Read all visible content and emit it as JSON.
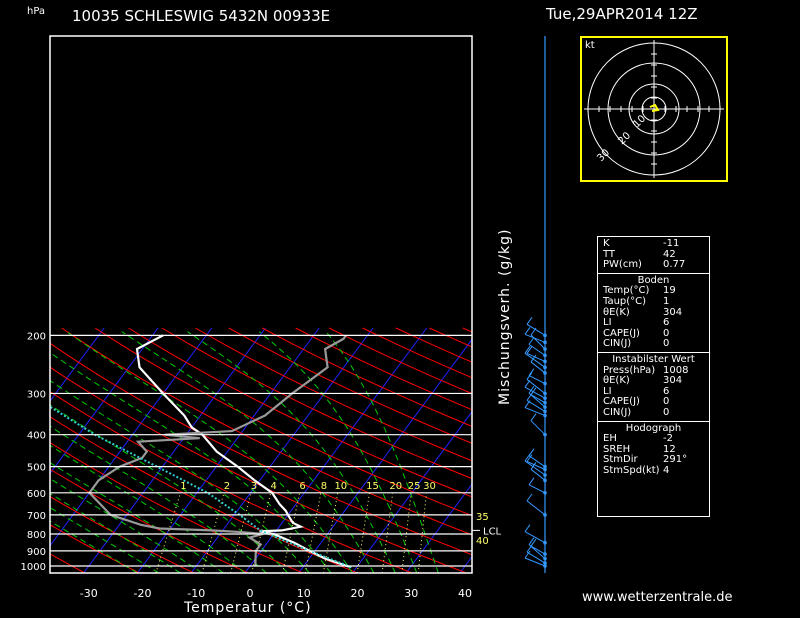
{
  "header": {
    "station": "10035 SCHLESWIG 5432N 00933E",
    "datetime": "Tue,29APR2014 12Z",
    "pressure_unit": "hPa"
  },
  "footer": {
    "website": "www.wetterzentrale.de"
  },
  "colors": {
    "background": "#000000",
    "isotherm": "#2222ff",
    "dry_adiabat": "#ff0000",
    "moist_adiabat": "#00cc00",
    "mixing_ratio": "#ffff66",
    "parcel": "#33cccc",
    "hodograph_frame": "#ffff00",
    "wind_barbs": "#3399ff"
  },
  "chart_data": {
    "type": "line",
    "subtype": "skew-T log-P diagram",
    "xlabel": "Temperatur (°C)",
    "ylabel": "Mischungsverh. (g/kg)",
    "x_ticks": [
      -30,
      -20,
      -10,
      0,
      10,
      20,
      30,
      40
    ],
    "pressure_levels": [
      200,
      300,
      400,
      500,
      600,
      700,
      800,
      900,
      1000
    ],
    "xlim": [
      -40,
      40
    ],
    "ylim": [
      1000,
      200
    ],
    "mixing_ratio_labels": [
      "1",
      "2",
      "3",
      "4",
      "6",
      "8",
      "10",
      "15",
      "20",
      "25",
      "30"
    ],
    "theta_e_labels": [
      "35",
      "40"
    ],
    "lcl_label": "LCL",
    "lcl_pressure": 780,
    "series": [
      {
        "name": "Temp",
        "color": "#ffffff",
        "points": [
          [
            1008,
            19
          ],
          [
            1000,
            18
          ],
          [
            950,
            13
          ],
          [
            900,
            9
          ],
          [
            850,
            5
          ],
          [
            800,
            0
          ],
          [
            785,
            -3
          ],
          [
            780,
            1
          ],
          [
            760,
            4
          ],
          [
            740,
            2
          ],
          [
            700,
            0
          ],
          [
            680,
            -1
          ],
          [
            650,
            -3
          ],
          [
            600,
            -6
          ],
          [
            550,
            -11
          ],
          [
            500,
            -16
          ],
          [
            450,
            -22
          ],
          [
            400,
            -27
          ],
          [
            380,
            -30
          ],
          [
            350,
            -33
          ],
          [
            300,
            -40
          ],
          [
            250,
            -48
          ],
          [
            220,
            -51
          ],
          [
            200,
            -48
          ]
        ]
      },
      {
        "name": "Taupunkt",
        "color": "#999999",
        "points": [
          [
            1000,
            1
          ],
          [
            950,
            0
          ],
          [
            900,
            -1
          ],
          [
            860,
            -1
          ],
          [
            820,
            -4
          ],
          [
            800,
            -2
          ],
          [
            790,
            -6
          ],
          [
            780,
            -12
          ],
          [
            770,
            -22
          ],
          [
            750,
            -26
          ],
          [
            700,
            -33
          ],
          [
            600,
            -40
          ],
          [
            550,
            -40
          ],
          [
            500,
            -38
          ],
          [
            470,
            -35
          ],
          [
            450,
            -35
          ],
          [
            420,
            -38
          ],
          [
            410,
            -27
          ],
          [
            400,
            -34
          ],
          [
            390,
            -22
          ],
          [
            350,
            -18
          ],
          [
            300,
            -16
          ],
          [
            250,
            -13
          ],
          [
            220,
            -16
          ],
          [
            205,
            -14
          ],
          [
            200,
            -14
          ]
        ]
      },
      {
        "name": "Parcel",
        "color": "#33cccc",
        "points": [
          [
            1008,
            19
          ],
          [
            900,
            9
          ],
          [
            800,
            -1
          ],
          [
            780,
            -3
          ],
          [
            700,
            -9
          ],
          [
            600,
            -18
          ],
          [
            500,
            -31
          ],
          [
            400,
            -47
          ],
          [
            300,
            -65
          ],
          [
            200,
            -89
          ]
        ]
      }
    ],
    "wind_profile": [
      1000,
      980,
      950,
      920,
      850,
      700,
      600,
      550,
      530,
      510,
      500,
      400,
      350,
      340,
      330,
      320,
      310,
      300,
      280,
      260,
      250,
      240,
      230,
      220,
      210,
      200
    ],
    "hodograph": {
      "unit_label": "kt",
      "ring_labels": [
        "10",
        "20",
        "30"
      ]
    }
  },
  "indices": {
    "general": [
      {
        "label": "K",
        "value": "-11"
      },
      {
        "label": "TT",
        "value": "42"
      },
      {
        "label": "PW(cm)",
        "value": "0.77"
      }
    ],
    "surface_title": "Boden",
    "surface": [
      {
        "label": "Temp(°C)",
        "value": "19"
      },
      {
        "label": "Taup(°C)",
        "value": "1"
      },
      {
        "label": "θE(K)",
        "value": "304"
      },
      {
        "label": "LI",
        "value": "6"
      },
      {
        "label": "CAPE(J)",
        "value": "0"
      },
      {
        "label": "CIN(J)",
        "value": "0"
      }
    ],
    "unstable_title": "Instabilster Wert",
    "unstable": [
      {
        "label": "Press(hPa)",
        "value": "1008"
      },
      {
        "label": "θE(K)",
        "value": "304"
      },
      {
        "label": "LI",
        "value": "6"
      },
      {
        "label": "CAPE(J)",
        "value": "0"
      },
      {
        "label": "CIN(J)",
        "value": "0"
      }
    ],
    "hodograph_title": "Hodograph",
    "hodograph": [
      {
        "label": "EH",
        "value": "-2"
      },
      {
        "label": "SREH",
        "value": "12"
      },
      {
        "label": "StmDir",
        "value": "291°"
      },
      {
        "label": "StmSpd(kt)",
        "value": "4"
      }
    ]
  }
}
